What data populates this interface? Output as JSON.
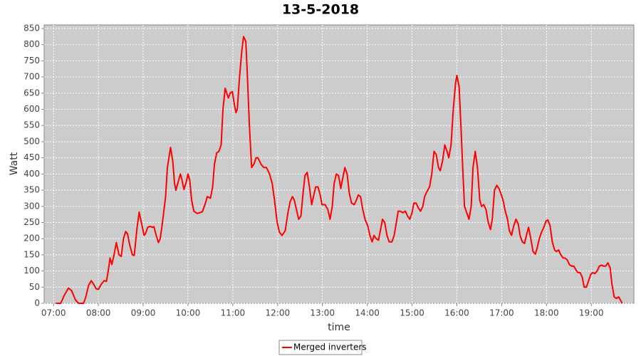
{
  "chart_data": {
    "type": "line",
    "title": "13-5-2018",
    "xlabel": "time",
    "ylabel": "Watt",
    "x": [
      7.05,
      7.16,
      7.24,
      7.33,
      7.4,
      7.49,
      7.56,
      7.67,
      7.72,
      7.78,
      7.84,
      7.89,
      7.95,
      8.0,
      8.07,
      8.13,
      8.18,
      8.22,
      8.26,
      8.3,
      8.35,
      8.4,
      8.46,
      8.51,
      8.56,
      8.61,
      8.65,
      8.7,
      8.76,
      8.8,
      8.86,
      8.91,
      8.96,
      9.02,
      9.05,
      9.1,
      9.15,
      9.21,
      9.24,
      9.29,
      9.34,
      9.38,
      9.43,
      9.5,
      9.54,
      9.61,
      9.66,
      9.7,
      9.73,
      9.78,
      9.83,
      9.86,
      9.91,
      9.96,
      10.0,
      10.04,
      10.08,
      10.13,
      10.2,
      10.26,
      10.32,
      10.39,
      10.43,
      10.5,
      10.55,
      10.59,
      10.64,
      10.69,
      10.74,
      10.78,
      10.83,
      10.9,
      10.94,
      10.99,
      11.04,
      11.07,
      11.1,
      11.15,
      11.2,
      11.24,
      11.29,
      11.32,
      11.37,
      11.42,
      11.47,
      11.52,
      11.56,
      11.63,
      11.69,
      11.75,
      11.82,
      11.88,
      11.93,
      11.99,
      12.04,
      12.1,
      12.17,
      12.23,
      12.28,
      12.33,
      12.37,
      12.42,
      12.47,
      12.52,
      12.56,
      12.61,
      12.66,
      12.71,
      12.76,
      12.8,
      12.85,
      12.9,
      12.95,
      12.99,
      13.06,
      13.12,
      13.17,
      13.22,
      13.26,
      13.31,
      13.36,
      13.41,
      13.45,
      13.5,
      13.55,
      13.6,
      13.65,
      13.71,
      13.76,
      13.8,
      13.85,
      13.9,
      13.95,
      14.01,
      14.06,
      14.11,
      14.15,
      14.2,
      14.25,
      14.3,
      14.34,
      14.39,
      14.44,
      14.49,
      14.55,
      14.6,
      14.65,
      14.69,
      14.74,
      14.79,
      14.85,
      14.9,
      14.95,
      15.0,
      15.04,
      15.09,
      15.14,
      15.19,
      15.24,
      15.28,
      15.33,
      15.39,
      15.44,
      15.49,
      15.54,
      15.59,
      15.63,
      15.68,
      15.73,
      15.78,
      15.82,
      15.87,
      15.92,
      15.97,
      16.0,
      16.05,
      16.09,
      16.14,
      16.17,
      16.22,
      16.27,
      16.32,
      16.36,
      16.41,
      16.46,
      16.51,
      16.55,
      16.6,
      16.65,
      16.7,
      16.75,
      16.79,
      16.84,
      16.89,
      16.94,
      16.98,
      17.03,
      17.08,
      17.13,
      17.17,
      17.22,
      17.27,
      17.32,
      17.37,
      17.41,
      17.46,
      17.51,
      17.56,
      17.6,
      17.65,
      17.7,
      17.75,
      17.79,
      17.84,
      17.89,
      17.94,
      17.99,
      18.03,
      18.08,
      18.13,
      18.18,
      18.22,
      18.27,
      18.32,
      18.37,
      18.41,
      18.46,
      18.51,
      18.56,
      18.61,
      18.65,
      18.7,
      18.75,
      18.8,
      18.84,
      18.89,
      18.94,
      18.99,
      19.03,
      19.08,
      19.13,
      19.18,
      19.23,
      19.27,
      19.32,
      19.37,
      19.42,
      19.46,
      19.51,
      19.56,
      19.61,
      19.65,
      19.69
    ],
    "series": [
      {
        "name": "Merged inverters",
        "color": "#ff0000",
        "values": [
          0,
          0,
          25,
          47,
          40,
          10,
          0,
          0,
          20,
          55,
          70,
          60,
          45,
          43,
          60,
          70,
          68,
          100,
          140,
          120,
          150,
          188,
          150,
          145,
          200,
          222,
          215,
          180,
          150,
          148,
          230,
          282,
          250,
          210,
          215,
          235,
          238,
          235,
          237,
          210,
          188,
          200,
          250,
          330,
          420,
          482,
          440,
          370,
          350,
          375,
          400,
          385,
          352,
          375,
          400,
          380,
          320,
          285,
          278,
          280,
          283,
          310,
          330,
          325,
          360,
          430,
          465,
          470,
          490,
          600,
          665,
          635,
          650,
          655,
          610,
          590,
          600,
          700,
          780,
          825,
          810,
          720,
          550,
          420,
          430,
          450,
          450,
          430,
          420,
          420,
          400,
          370,
          320,
          250,
          220,
          210,
          225,
          280,
          315,
          330,
          320,
          290,
          260,
          270,
          330,
          395,
          405,
          360,
          305,
          330,
          360,
          360,
          335,
          305,
          305,
          290,
          260,
          300,
          370,
          400,
          395,
          355,
          385,
          420,
          400,
          340,
          310,
          305,
          320,
          335,
          330,
          290,
          260,
          240,
          210,
          190,
          210,
          200,
          195,
          230,
          260,
          250,
          210,
          190,
          190,
          210,
          250,
          285,
          285,
          280,
          285,
          270,
          260,
          280,
          310,
          310,
          295,
          285,
          300,
          330,
          345,
          360,
          400,
          470,
          460,
          420,
          410,
          440,
          490,
          470,
          450,
          490,
          600,
          680,
          705,
          670,
          550,
          390,
          300,
          280,
          260,
          300,
          420,
          470,
          420,
          320,
          300,
          305,
          290,
          250,
          228,
          260,
          350,
          365,
          355,
          340,
          320,
          285,
          260,
          225,
          210,
          240,
          260,
          245,
          210,
          190,
          185,
          215,
          235,
          200,
          160,
          152,
          170,
          200,
          220,
          235,
          255,
          258,
          240,
          190,
          165,
          160,
          165,
          150,
          140,
          140,
          135,
          120,
          115,
          115,
          105,
          95,
          95,
          80,
          50,
          50,
          70,
          90,
          95,
          92,
          100,
          115,
          118,
          115,
          115,
          125,
          110,
          60,
          20,
          15,
          20,
          10,
          0
        ]
      }
    ],
    "xlim": [
      6.79,
      19.95
    ],
    "xticks": [
      {
        "value": 7,
        "label": "07:00"
      },
      {
        "value": 8,
        "label": "08:00"
      },
      {
        "value": 9,
        "label": "09:00"
      },
      {
        "value": 10,
        "label": "10:00"
      },
      {
        "value": 11,
        "label": "11:00"
      },
      {
        "value": 12,
        "label": "12:00"
      },
      {
        "value": 13,
        "label": "13:00"
      },
      {
        "value": 14,
        "label": "14:00"
      },
      {
        "value": 15,
        "label": "15:00"
      },
      {
        "value": 16,
        "label": "16:00"
      },
      {
        "value": 17,
        "label": "17:00"
      },
      {
        "value": 18,
        "label": "18:00"
      },
      {
        "value": 19,
        "label": "19:00"
      }
    ],
    "ylim": [
      0,
      861
    ],
    "yticks": [
      0,
      50,
      100,
      150,
      200,
      250,
      300,
      350,
      400,
      450,
      500,
      550,
      600,
      650,
      700,
      750,
      800,
      850
    ],
    "grid": true,
    "legend": "bottom"
  }
}
